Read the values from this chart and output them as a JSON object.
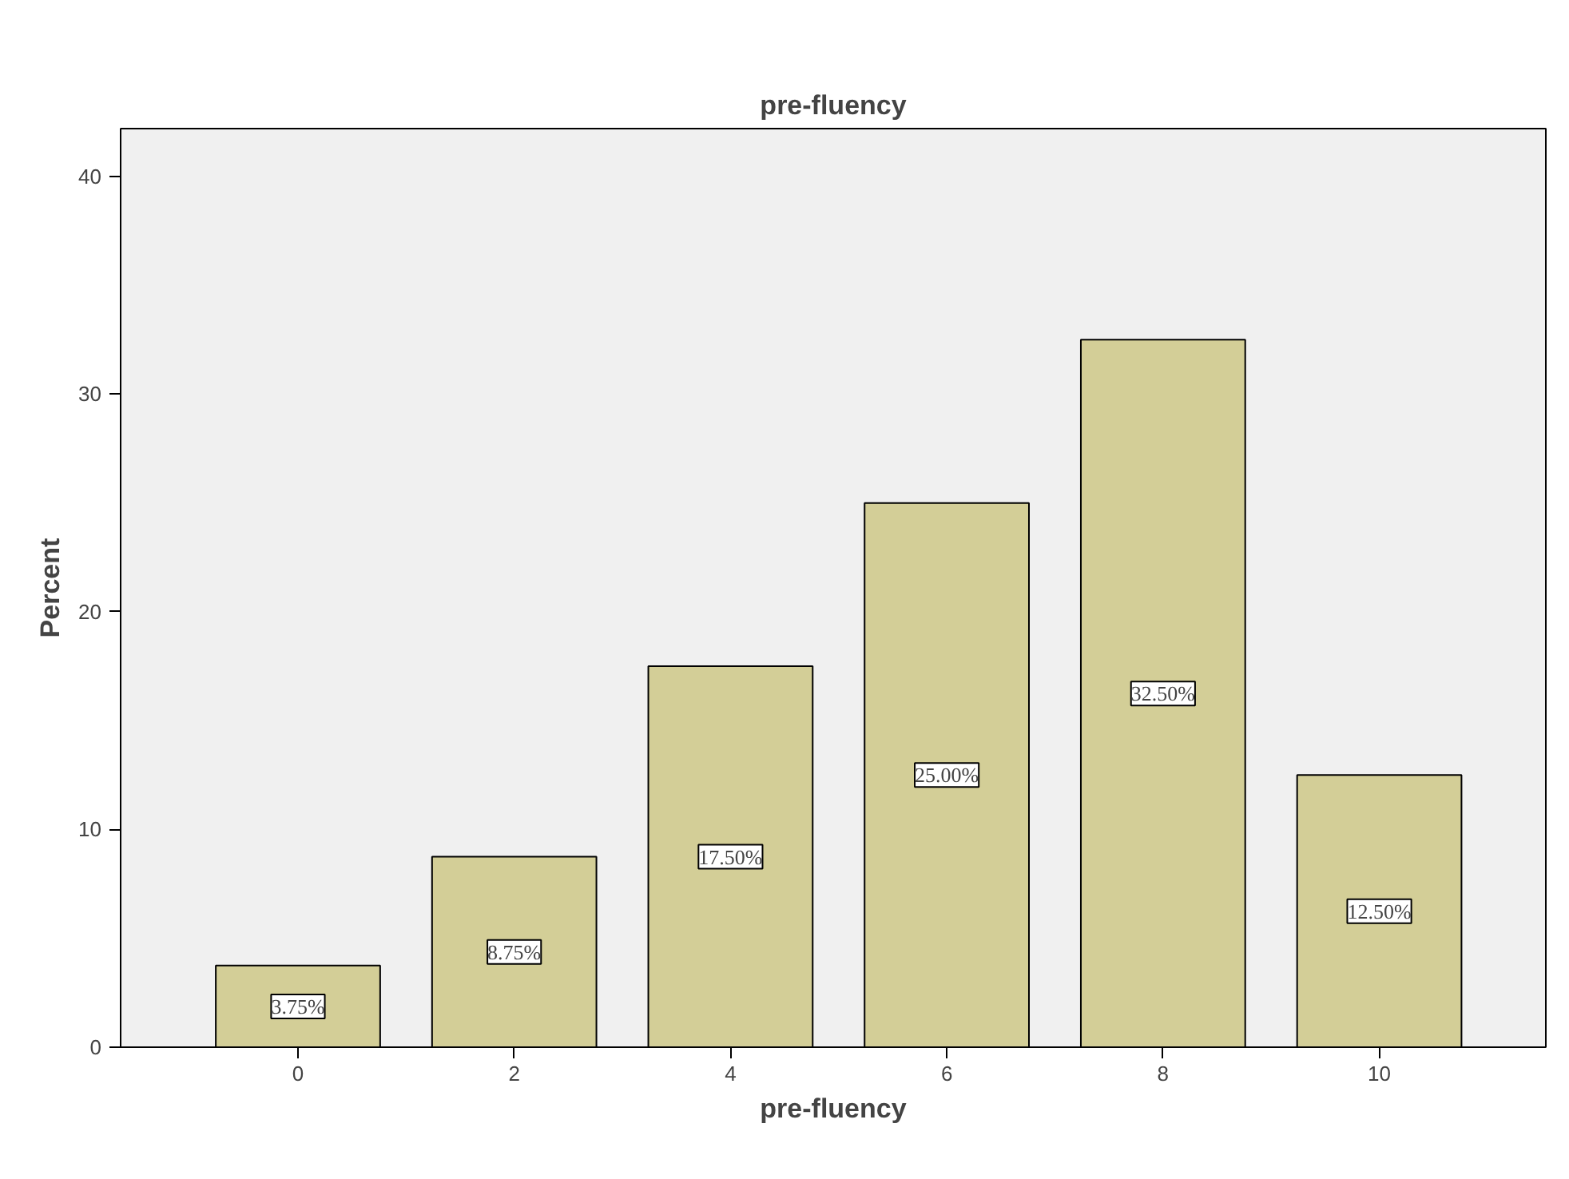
{
  "chart_data": {
    "type": "bar",
    "title": "pre-fluency",
    "xlabel": "pre-fluency",
    "ylabel": "Percent",
    "categories": [
      "0",
      "2",
      "4",
      "6",
      "8",
      "10"
    ],
    "values": [
      3.75,
      8.75,
      17.5,
      25,
      32.5,
      12.5
    ],
    "value_labels": [
      "3.75%",
      "8.75%",
      "17.50%",
      "25.00%",
      "32.50%",
      "12.50%"
    ],
    "color": "#d3ce97",
    "ylim": [
      0,
      42.2
    ],
    "yticks": [
      0,
      10,
      20,
      30,
      40
    ],
    "grid": false
  }
}
